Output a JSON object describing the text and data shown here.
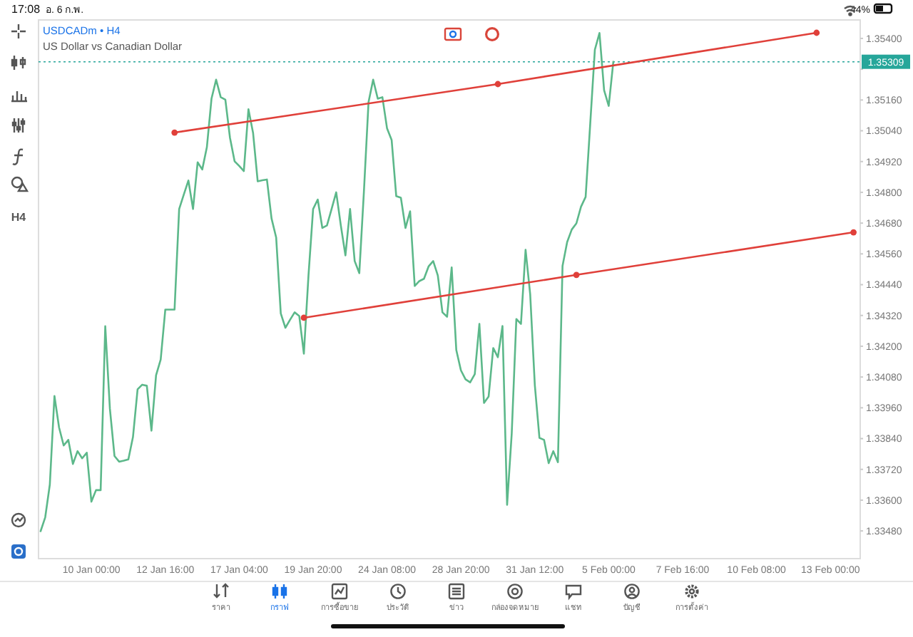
{
  "chart_data": {
    "type": "line",
    "title": "USDCADm • H4",
    "subtitle": "US Dollar vs Canadian Dollar",
    "categories": [
      null,
      null,
      null,
      null,
      null,
      null,
      null,
      null,
      null,
      null,
      null,
      "10 Jan 00:00",
      null,
      null,
      null,
      null,
      null,
      null,
      null,
      null,
      null,
      null,
      null,
      null,
      null,
      null,
      null,
      "12 Jan 16:00",
      null,
      null,
      null,
      null,
      null,
      null,
      null,
      null,
      null,
      null,
      null,
      null,
      null,
      null,
      null,
      "17 Jan 04:00",
      null,
      null,
      null,
      null,
      null,
      null,
      null,
      null,
      null,
      null,
      null,
      null,
      null,
      null,
      null,
      "19 Jan 20:00",
      null,
      null,
      null,
      null,
      null,
      null,
      null,
      null,
      null,
      null,
      null,
      null,
      null,
      null,
      null,
      "24 Jan 08:00",
      null,
      null,
      null,
      null,
      null,
      null,
      null,
      null,
      null,
      null,
      null,
      null,
      null,
      null,
      null,
      "28 Jan 20:00",
      null,
      null,
      null,
      null,
      null,
      null,
      null,
      null,
      null,
      null,
      null,
      null,
      null,
      null,
      null,
      "31 Jan 12:00",
      null,
      null,
      null,
      null,
      null,
      null,
      null,
      null,
      null,
      null,
      null,
      null,
      null,
      null,
      null,
      "5 Feb 00:00",
      null,
      null,
      null,
      null,
      null,
      null,
      null,
      null,
      null,
      null,
      null,
      null,
      null,
      null,
      null,
      "7 Feb 16:00",
      null,
      null,
      null,
      null,
      null,
      null,
      null,
      null,
      null,
      null,
      null,
      null,
      null,
      null,
      null,
      "10 Feb 08:00",
      null,
      null,
      null,
      null,
      null,
      null,
      null,
      null,
      null,
      null,
      null,
      null,
      null,
      null,
      null,
      "13 Feb 00:00",
      null,
      null,
      null,
      null,
      null,
      null
    ],
    "ylim": [
      1.33372,
      1.35472
    ],
    "yticks": [
      {
        "value": 1.3348,
        "label": "1.33480"
      },
      {
        "value": 1.336,
        "label": "1.33600"
      },
      {
        "value": 1.3372,
        "label": "1.33720"
      },
      {
        "value": 1.3384,
        "label": "1.33840"
      },
      {
        "value": 1.3396,
        "label": "1.33960"
      },
      {
        "value": 1.3408,
        "label": "1.34080"
      },
      {
        "value": 1.342,
        "label": "1.34200"
      },
      {
        "value": 1.3432,
        "label": "1.34320"
      },
      {
        "value": 1.3444,
        "label": "1.34440"
      },
      {
        "value": 1.3456,
        "label": "1.34560"
      },
      {
        "value": 1.3468,
        "label": "1.34680"
      },
      {
        "value": 1.348,
        "label": "1.34800"
      },
      {
        "value": 1.3492,
        "label": "1.34920"
      },
      {
        "value": 1.3504,
        "label": "1.35040"
      },
      {
        "value": 1.3516,
        "label": "1.35160"
      },
      {
        "value": 1.3528,
        "label": null
      },
      {
        "value": 1.354,
        "label": "1.35400"
      }
    ],
    "grid": false,
    "line_style": "solid",
    "series": [
      {
        "color": "#5cb88a",
        "marker": "none",
        "values": [
          1.33479,
          1.33533,
          1.33661,
          1.34006,
          1.33883,
          1.33813,
          1.33835,
          1.33741,
          1.33791,
          1.33763,
          1.33785,
          1.33594,
          1.33639,
          1.33639,
          1.34278,
          1.33957,
          1.33772,
          1.3375,
          1.33754,
          1.33759,
          1.33846,
          1.34032,
          1.3405,
          1.34046,
          1.33871,
          1.34087,
          1.34148,
          1.34343,
          1.34343,
          1.34343,
          1.34735,
          1.34791,
          1.34846,
          1.34735,
          1.34917,
          1.34889,
          1.34976,
          1.35165,
          1.35239,
          1.35171,
          1.35161,
          1.35013,
          1.34921,
          1.34903,
          1.34883,
          1.35124,
          1.35032,
          1.34843,
          1.34847,
          1.3485,
          1.34698,
          1.34624,
          1.34328,
          1.34272,
          1.34303,
          1.34332,
          1.34318,
          1.34171,
          1.34476,
          1.34735,
          1.34772,
          1.34661,
          1.34671,
          1.34735,
          1.348,
          1.34671,
          1.34554,
          1.34735,
          1.34532,
          1.34485,
          1.34803,
          1.35152,
          1.35239,
          1.35165,
          1.35171,
          1.3505,
          1.35004,
          1.34785,
          1.34779,
          1.34661,
          1.34726,
          1.34435,
          1.34454,
          1.34463,
          1.34511,
          1.34532,
          1.34476,
          1.34332,
          1.34315,
          1.34507,
          1.34185,
          1.34106,
          1.34071,
          1.34059,
          1.34091,
          1.34287,
          1.33979,
          1.34004,
          1.34193,
          1.34157,
          1.34279,
          1.33582,
          1.33859,
          1.34306,
          1.34287,
          1.34576,
          1.34402,
          1.34049,
          1.33843,
          1.33835,
          1.33744,
          1.33791,
          1.33748,
          1.34513,
          1.34606,
          1.34655,
          1.34679,
          1.34744,
          1.34782,
          1.35068,
          1.35356,
          1.35421,
          1.35198,
          1.35137,
          1.35309,
          null,
          null,
          null,
          null,
          null,
          null,
          null,
          null,
          null,
          null,
          null,
          null,
          null,
          null,
          null,
          null,
          null,
          null,
          null,
          null,
          null,
          null,
          null,
          null,
          null,
          null,
          null,
          null,
          null,
          null,
          null,
          null,
          null,
          null,
          null,
          null,
          null,
          null,
          null,
          null,
          null,
          null,
          null,
          null,
          null,
          null,
          null,
          null,
          null,
          null,
          null,
          null,
          null
        ]
      },
      {
        "color": "#e0403a",
        "marker": "circle",
        "values": [
          null,
          null,
          null,
          null,
          null,
          null,
          null,
          null,
          null,
          null,
          null,
          null,
          null,
          null,
          null,
          null,
          null,
          null,
          null,
          null,
          null,
          null,
          null,
          null,
          null,
          null,
          null,
          null,
          null,
          1.35033,
          null,
          null,
          null,
          null,
          null,
          null,
          null,
          null,
          null,
          null,
          null,
          null,
          null,
          null,
          null,
          null,
          null,
          null,
          null,
          null,
          null,
          null,
          null,
          null,
          null,
          null,
          null,
          null,
          null,
          null,
          null,
          null,
          null,
          null,
          null,
          null,
          null,
          null,
          null,
          null,
          null,
          null,
          null,
          null,
          null,
          null,
          null,
          null,
          null,
          null,
          null,
          null,
          null,
          null,
          null,
          null,
          null,
          null,
          null,
          null,
          null,
          null,
          null,
          null,
          null,
          null,
          null,
          null,
          null,
          1.35222,
          null,
          null,
          null,
          null,
          null,
          null,
          null,
          null,
          null,
          null,
          null,
          null,
          null,
          null,
          null,
          null,
          null,
          null,
          null,
          null,
          null,
          null,
          null,
          null,
          null,
          null,
          null,
          null,
          null,
          null,
          null,
          null,
          null,
          null,
          null,
          null,
          null,
          null,
          null,
          null,
          null,
          null,
          null,
          null,
          null,
          null,
          null,
          null,
          null,
          null,
          null,
          null,
          null,
          null,
          null,
          null,
          null,
          null,
          null,
          null,
          null,
          null,
          null,
          null,
          null,
          null,
          null,
          null,
          1.35422,
          null,
          null,
          null,
          null,
          null,
          null,
          null,
          null,
          null
        ]
      },
      {
        "color": "#e0403a",
        "marker": "circle",
        "values": [
          null,
          null,
          null,
          null,
          null,
          null,
          null,
          null,
          null,
          null,
          null,
          null,
          null,
          null,
          null,
          null,
          null,
          null,
          null,
          null,
          null,
          null,
          null,
          null,
          null,
          null,
          null,
          null,
          null,
          null,
          null,
          null,
          null,
          null,
          null,
          null,
          null,
          null,
          null,
          null,
          null,
          null,
          null,
          null,
          null,
          null,
          null,
          null,
          null,
          null,
          null,
          null,
          null,
          null,
          null,
          null,
          null,
          1.34311,
          null,
          null,
          null,
          null,
          null,
          null,
          null,
          null,
          null,
          null,
          null,
          null,
          null,
          null,
          null,
          null,
          null,
          null,
          null,
          null,
          null,
          null,
          null,
          null,
          null,
          null,
          null,
          null,
          null,
          null,
          null,
          null,
          null,
          null,
          null,
          null,
          null,
          null,
          null,
          null,
          null,
          null,
          null,
          null,
          null,
          null,
          null,
          null,
          null,
          null,
          null,
          null,
          null,
          null,
          null,
          null,
          null,
          null,
          1.34478,
          null,
          null,
          null,
          null,
          null,
          null,
          null,
          null,
          null,
          null,
          null,
          null,
          null,
          null,
          null,
          null,
          null,
          null,
          null,
          null,
          null,
          null,
          null,
          null,
          null,
          null,
          null,
          null,
          null,
          null,
          null,
          null,
          null,
          null,
          null,
          null,
          null,
          null,
          null,
          null,
          null,
          null,
          null,
          null,
          null,
          null,
          null,
          null,
          null,
          null,
          null,
          null,
          null,
          null,
          null,
          null,
          null,
          null,
          null,
          1.34644,
          null
        ]
      }
    ],
    "ref_lines": [
      {
        "axis": "y",
        "value": 1.35309,
        "label": "1.35309",
        "color": "#26a69a",
        "line_style": "dotted"
      }
    ],
    "annotations": [
      "17:08",
      "อ. 6 ก.พ.",
      "44%",
      "H4",
      "ราคา",
      "กราฟ",
      "การซื้อขาย",
      "ประวัติ",
      "ข่าว",
      "กล่องจดหมาย",
      "แชท",
      "บัญชี",
      "การตั้งค่า"
    ]
  }
}
